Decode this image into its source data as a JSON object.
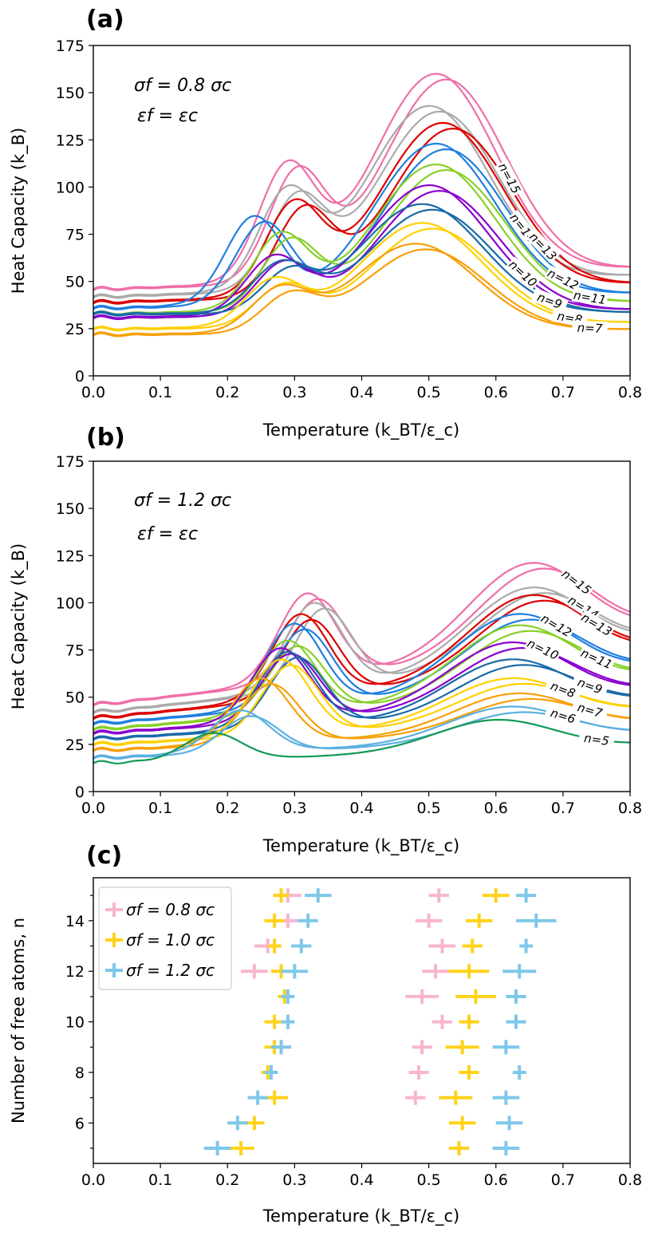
{
  "chart_data": [
    {
      "panel": "(a)",
      "type": "line",
      "xlabel": "Temperature (k_BT/ε_c)",
      "ylabel": "Heat Capacity  (k_B)",
      "xlim": [
        0,
        0.8
      ],
      "ylim": [
        0,
        175
      ],
      "xticks": [
        "0.0",
        "0.1",
        "0.2",
        "0.3",
        "0.4",
        "0.5",
        "0.6",
        "0.7",
        "0.8"
      ],
      "yticks": [
        "0",
        "25",
        "50",
        "75",
        "100",
        "125",
        "150",
        "175"
      ],
      "annotations": [
        "σf = 0.8 σc",
        "εf = εc"
      ],
      "series": [
        {
          "label": "n=15",
          "color": "#f06ea9",
          "runs": 2,
          "c0": 46,
          "b1": {
            "t": 0.29,
            "h": 110
          },
          "b2": {
            "t": 0.51,
            "h": 160
          },
          "end": 62,
          "label_at": 0.62
        },
        {
          "label": "n=14",
          "color": "#aaaaaa",
          "runs": 2,
          "c0": 42,
          "b1": {
            "t": 0.29,
            "h": 96
          },
          "b2": {
            "t": 0.5,
            "h": 143
          },
          "end": 58,
          "label_at": 0.64
        },
        {
          "label": "n=13",
          "color": "#dd0000",
          "runs": 2,
          "c0": 39,
          "b1": {
            "t": 0.3,
            "h": 90
          },
          "b2": {
            "t": 0.52,
            "h": 134
          },
          "end": 53,
          "label_at": 0.67
        },
        {
          "label": "n=12",
          "color": "#1f7fdf",
          "runs": 2,
          "c0": 36,
          "b1": {
            "t": 0.24,
            "h": 84
          },
          "b2": {
            "t": 0.51,
            "h": 123
          },
          "end": 47,
          "label_at": 0.7
        },
        {
          "label": "n=11",
          "color": "#88d02a",
          "runs": 2,
          "c0": 33,
          "b1": {
            "t": 0.28,
            "h": 74
          },
          "b2": {
            "t": 0.51,
            "h": 112
          },
          "end": 42,
          "label_at": 0.74
        },
        {
          "label": "n=10",
          "color": "#8a00cc",
          "runs": 2,
          "c0": 31,
          "b1": {
            "t": 0.27,
            "h": 62
          },
          "b2": {
            "t": 0.5,
            "h": 101
          },
          "end": 37,
          "label_at": 0.64
        },
        {
          "label": "n=9",
          "color": "#1a6aa8",
          "runs": 2,
          "c0": 33,
          "b1": {
            "t": 0.28,
            "h": 58
          },
          "b2": {
            "t": 0.49,
            "h": 91
          },
          "end": 34,
          "label_at": 0.68
        },
        {
          "label": "n=8",
          "color": "#ffd000",
          "runs": 2,
          "c0": 25,
          "b1": {
            "t": 0.27,
            "h": 50
          },
          "b2": {
            "t": 0.49,
            "h": 81
          },
          "end": 30,
          "label_at": 0.71
        },
        {
          "label": "n=7",
          "color": "#f7a00a",
          "runs": 2,
          "c0": 22,
          "b1": {
            "t": 0.28,
            "h": 45
          },
          "b2": {
            "t": 0.48,
            "h": 70
          },
          "end": 26,
          "label_at": 0.74
        }
      ]
    },
    {
      "panel": "(b)",
      "type": "line",
      "xlabel": "Temperature (k_BT/ε_c)",
      "ylabel": "Heat Capacity  (k_B)",
      "xlim": [
        0,
        0.8
      ],
      "ylim": [
        0,
        175
      ],
      "xticks": [
        "0.0",
        "0.1",
        "0.2",
        "0.3",
        "0.4",
        "0.5",
        "0.6",
        "0.7",
        "0.8"
      ],
      "yticks": [
        "0",
        "25",
        "50",
        "75",
        "100",
        "125",
        "150",
        "175"
      ],
      "annotations": [
        "σf = 1.2 σc",
        "εf = εc"
      ],
      "series": [
        {
          "label": "n=15",
          "color": "#f06ea9",
          "runs": 2,
          "c0": 46,
          "b1": {
            "t": 0.32,
            "h": 105
          },
          "b2": {
            "t": 0.65,
            "h": 121
          },
          "end": 100,
          "label_at": 0.72
        },
        {
          "label": "n=14",
          "color": "#aaaaaa",
          "runs": 2,
          "c0": 42,
          "b1": {
            "t": 0.33,
            "h": 100
          },
          "b2": {
            "t": 0.65,
            "h": 108
          },
          "end": 92,
          "label_at": 0.73
        },
        {
          "label": "n=13",
          "color": "#dd0000",
          "runs": 2,
          "c0": 39,
          "b1": {
            "t": 0.31,
            "h": 94
          },
          "b2": {
            "t": 0.65,
            "h": 104
          },
          "end": 86,
          "label_at": 0.75
        },
        {
          "label": "n=12",
          "color": "#1f7fdf",
          "runs": 2,
          "c0": 36,
          "b1": {
            "t": 0.3,
            "h": 89
          },
          "b2": {
            "t": 0.63,
            "h": 94
          },
          "end": 76,
          "label_at": 0.69
        },
        {
          "label": "n=11",
          "color": "#88d02a",
          "runs": 2,
          "c0": 33,
          "b1": {
            "t": 0.29,
            "h": 80
          },
          "b2": {
            "t": 0.63,
            "h": 88
          },
          "end": 71,
          "label_at": 0.75
        },
        {
          "label": "n=10",
          "color": "#8a00cc",
          "runs": 2,
          "c0": 31,
          "b1": {
            "t": 0.28,
            "h": 76
          },
          "b2": {
            "t": 0.62,
            "h": 79
          },
          "end": 62,
          "label_at": 0.67
        },
        {
          "label": "n=9",
          "color": "#1a6aa8",
          "runs": 2,
          "c0": 28,
          "b1": {
            "t": 0.29,
            "h": 74
          },
          "b2": {
            "t": 0.62,
            "h": 70
          },
          "end": 56,
          "label_at": 0.74
        },
        {
          "label": "n=8",
          "color": "#ffd000",
          "runs": 2,
          "c0": 25,
          "b1": {
            "t": 0.28,
            "h": 70
          },
          "b2": {
            "t": 0.62,
            "h": 60
          },
          "end": 50,
          "label_at": 0.7
        },
        {
          "label": "n=7",
          "color": "#f7a00a",
          "runs": 2,
          "c0": 22,
          "b1": {
            "t": 0.25,
            "h": 60
          },
          "b2": {
            "t": 0.63,
            "h": 52
          },
          "end": 42,
          "label_at": 0.74
        },
        {
          "label": "n=6",
          "color": "#5ab0e0",
          "runs": 2,
          "c0": 18,
          "b1": {
            "t": 0.22,
            "h": 43
          },
          "b2": {
            "t": 0.62,
            "h": 45
          },
          "end": 36,
          "label_at": 0.7
        },
        {
          "label": "n=5",
          "color": "#119955",
          "runs": 1,
          "c0": 15,
          "b1": {
            "t": 0.18,
            "h": 31
          },
          "b2": {
            "t": 0.6,
            "h": 38
          },
          "end": 29,
          "label_at": 0.75
        }
      ]
    },
    {
      "panel": "(c)",
      "type": "scatter",
      "xlabel": "Temperature (k_BT/ε_c)",
      "ylabel": "Number of free atoms, n",
      "xlim": [
        0,
        0.8
      ],
      "ylim": [
        4.4,
        15.7
      ],
      "xticks": [
        "0.0",
        "0.1",
        "0.2",
        "0.3",
        "0.4",
        "0.5",
        "0.6",
        "0.7",
        "0.8"
      ],
      "yticks": [
        "6",
        "8",
        "10",
        "12",
        "14"
      ],
      "legend": {
        "placement": "top-left",
        "entries": [
          "σf = 0.8 σc",
          "σf = 1.0 σc",
          "σf = 1.2 σc"
        ]
      },
      "series": [
        {
          "name": "σf = 0.8 σc",
          "color": "#f7b5cf",
          "points": [
            {
              "n": 15,
              "x": 0.29,
              "xerr": 0.02
            },
            {
              "n": 14,
              "x": 0.29,
              "xerr": 0.02
            },
            {
              "n": 13,
              "x": 0.26,
              "xerr": 0.02
            },
            {
              "n": 12,
              "x": 0.24,
              "xerr": 0.02
            },
            {
              "n": 15,
              "x": 0.515,
              "xerr": 0.015
            },
            {
              "n": 14,
              "x": 0.5,
              "xerr": 0.02
            },
            {
              "n": 13,
              "x": 0.52,
              "xerr": 0.02
            },
            {
              "n": 12,
              "x": 0.51,
              "xerr": 0.02
            },
            {
              "n": 11,
              "x": 0.49,
              "xerr": 0.025
            },
            {
              "n": 10,
              "x": 0.52,
              "xerr": 0.015
            },
            {
              "n": 9,
              "x": 0.49,
              "xerr": 0.015
            },
            {
              "n": 8,
              "x": 0.485,
              "xerr": 0.015
            },
            {
              "n": 7,
              "x": 0.48,
              "xerr": 0.015
            }
          ]
        },
        {
          "name": "σf = 1.0 σc",
          "color": "#ffd21a",
          "points": [
            {
              "n": 15,
              "x": 0.28,
              "xerr": 0.012
            },
            {
              "n": 14,
              "x": 0.27,
              "xerr": 0.015
            },
            {
              "n": 13,
              "x": 0.27,
              "xerr": 0.01
            },
            {
              "n": 12,
              "x": 0.28,
              "xerr": 0.015
            },
            {
              "n": 11,
              "x": 0.285,
              "xerr": 0.01
            },
            {
              "n": 10,
              "x": 0.27,
              "xerr": 0.015
            },
            {
              "n": 9,
              "x": 0.27,
              "xerr": 0.015
            },
            {
              "n": 8,
              "x": 0.26,
              "xerr": 0.01
            },
            {
              "n": 7,
              "x": 0.27,
              "xerr": 0.02
            },
            {
              "n": 6,
              "x": 0.24,
              "xerr": 0.015
            },
            {
              "n": 5,
              "x": 0.22,
              "xerr": 0.02
            },
            {
              "n": 15,
              "x": 0.6,
              "xerr": 0.02
            },
            {
              "n": 14,
              "x": 0.575,
              "xerr": 0.02
            },
            {
              "n": 13,
              "x": 0.565,
              "xerr": 0.015
            },
            {
              "n": 12,
              "x": 0.56,
              "xerr": 0.03
            },
            {
              "n": 11,
              "x": 0.57,
              "xerr": 0.03
            },
            {
              "n": 10,
              "x": 0.56,
              "xerr": 0.015
            },
            {
              "n": 9,
              "x": 0.55,
              "xerr": 0.025
            },
            {
              "n": 8,
              "x": 0.56,
              "xerr": 0.015
            },
            {
              "n": 7,
              "x": 0.54,
              "xerr": 0.025
            },
            {
              "n": 6,
              "x": 0.55,
              "xerr": 0.02
            },
            {
              "n": 5,
              "x": 0.545,
              "xerr": 0.015
            }
          ]
        },
        {
          "name": "σf = 1.2 σc",
          "color": "#7ec8ea",
          "points": [
            {
              "n": 15,
              "x": 0.335,
              "xerr": 0.02
            },
            {
              "n": 14,
              "x": 0.32,
              "xerr": 0.015
            },
            {
              "n": 13,
              "x": 0.31,
              "xerr": 0.015
            },
            {
              "n": 12,
              "x": 0.3,
              "xerr": 0.02
            },
            {
              "n": 11,
              "x": 0.29,
              "xerr": 0.01
            },
            {
              "n": 10,
              "x": 0.29,
              "xerr": 0.01
            },
            {
              "n": 9,
              "x": 0.28,
              "xerr": 0.015
            },
            {
              "n": 8,
              "x": 0.265,
              "xerr": 0.01
            },
            {
              "n": 7,
              "x": 0.245,
              "xerr": 0.015
            },
            {
              "n": 6,
              "x": 0.215,
              "xerr": 0.015
            },
            {
              "n": 5,
              "x": 0.185,
              "xerr": 0.02
            },
            {
              "n": 15,
              "x": 0.645,
              "xerr": 0.015
            },
            {
              "n": 14,
              "x": 0.66,
              "xerr": 0.03
            },
            {
              "n": 13,
              "x": 0.645,
              "xerr": 0.01
            },
            {
              "n": 12,
              "x": 0.635,
              "xerr": 0.025
            },
            {
              "n": 11,
              "x": 0.63,
              "xerr": 0.015
            },
            {
              "n": 10,
              "x": 0.63,
              "xerr": 0.015
            },
            {
              "n": 9,
              "x": 0.615,
              "xerr": 0.02
            },
            {
              "n": 8,
              "x": 0.635,
              "xerr": 0.01
            },
            {
              "n": 7,
              "x": 0.615,
              "xerr": 0.02
            },
            {
              "n": 6,
              "x": 0.62,
              "xerr": 0.02
            },
            {
              "n": 5,
              "x": 0.615,
              "xerr": 0.02
            }
          ]
        }
      ]
    }
  ]
}
